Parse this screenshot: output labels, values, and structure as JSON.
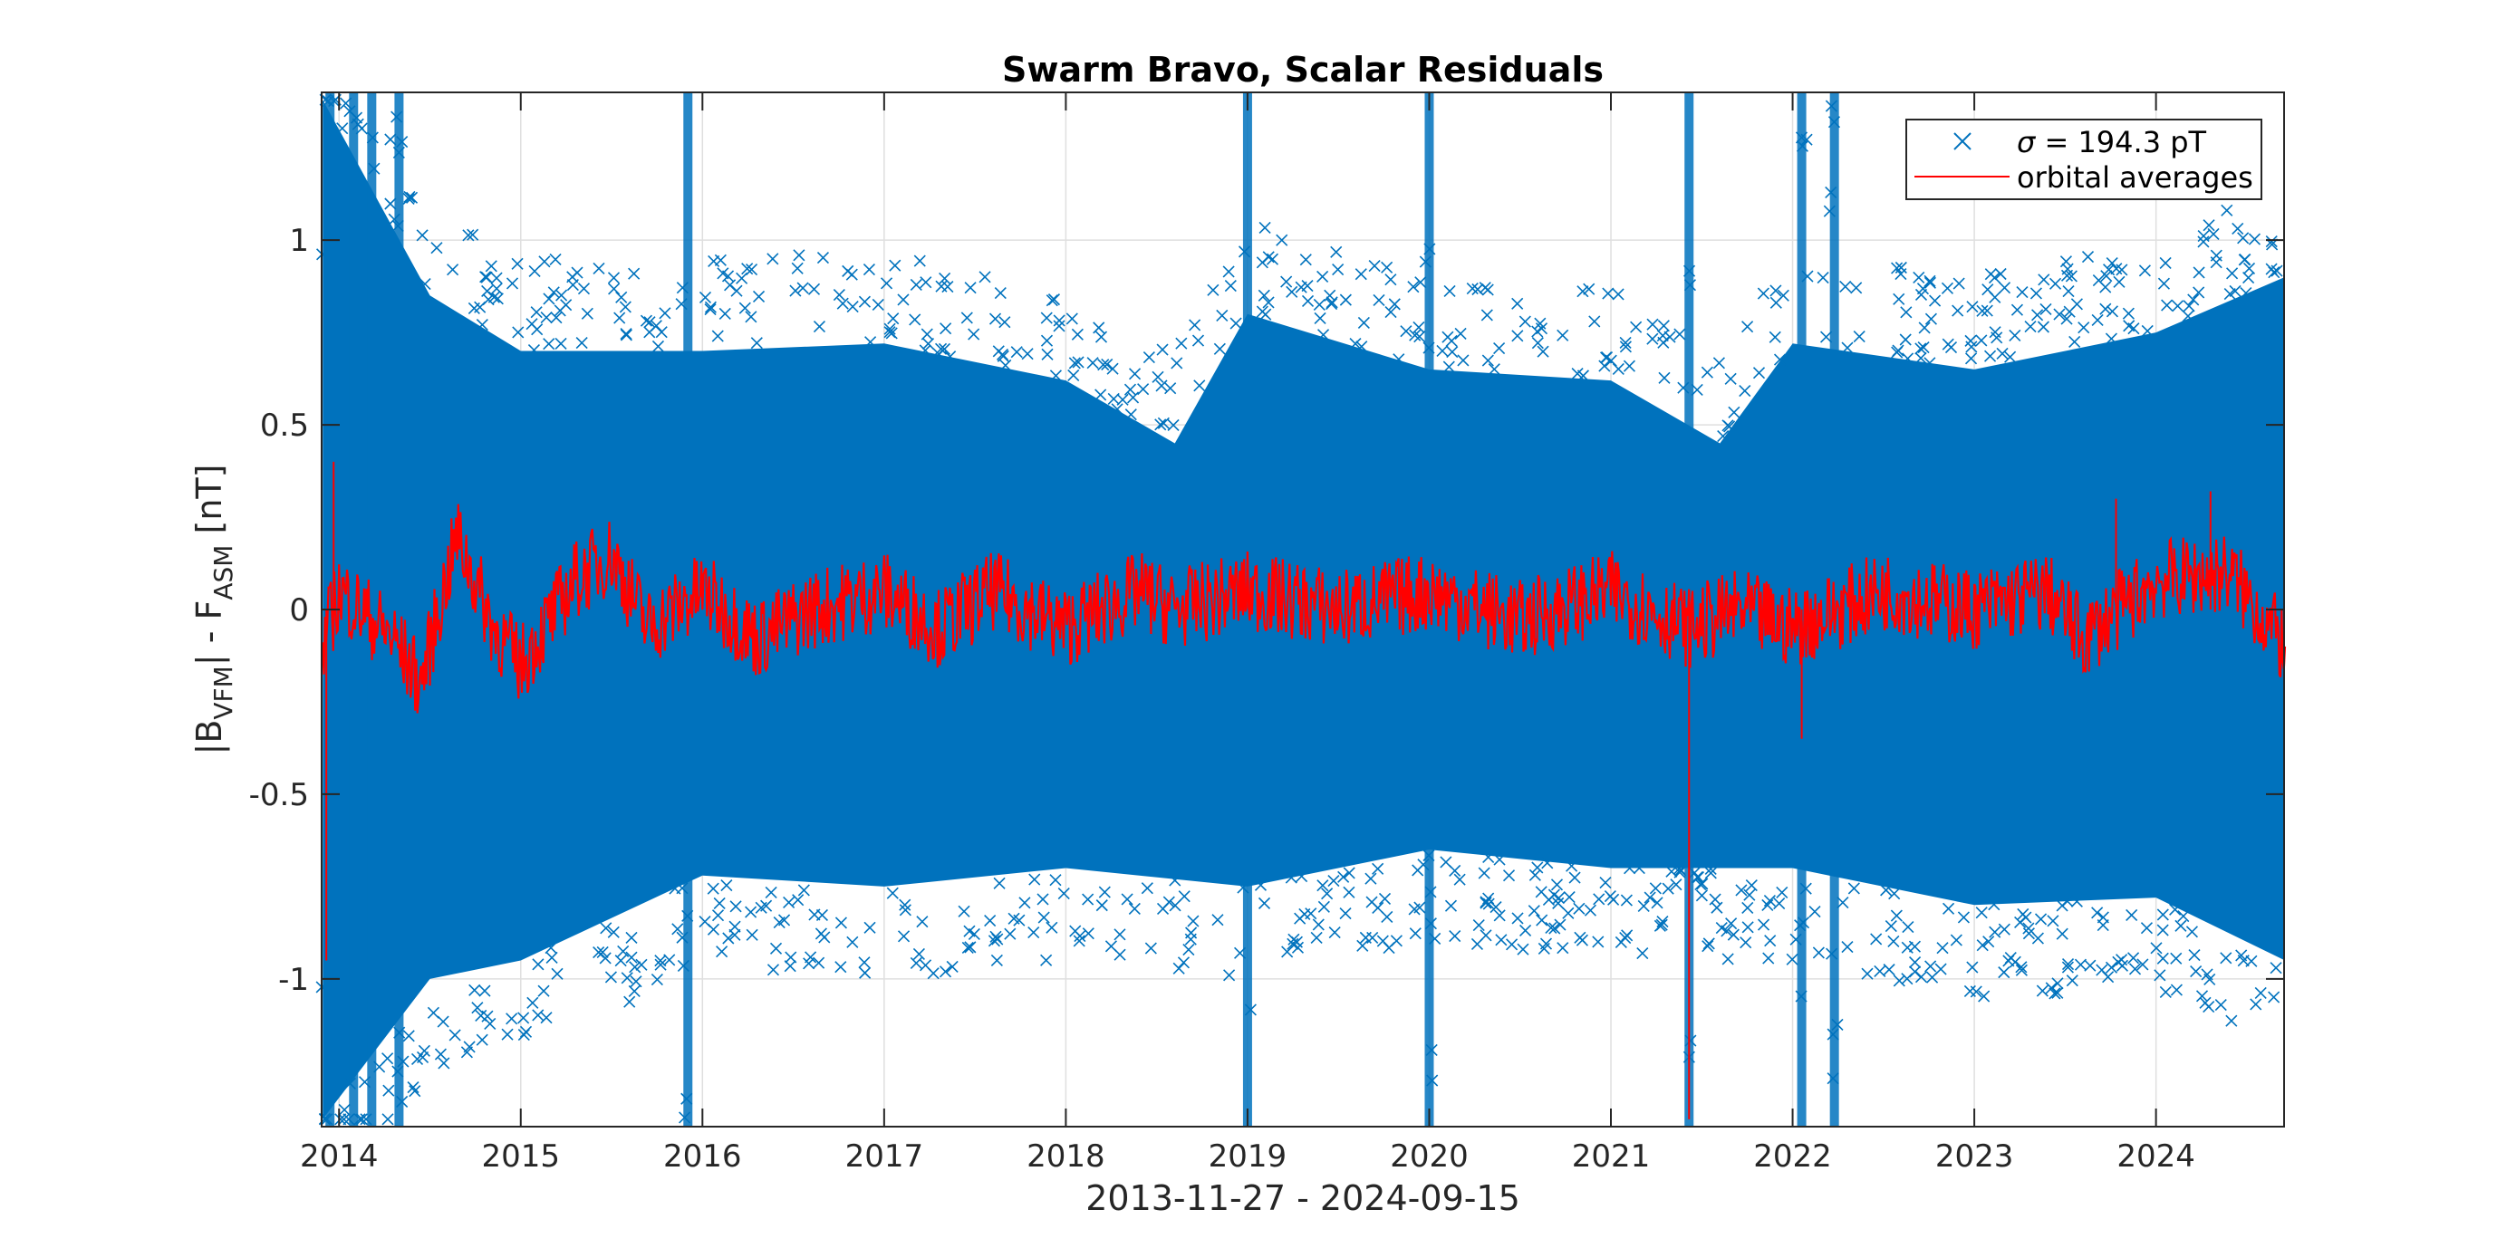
{
  "chart_data": {
    "type": "scatter",
    "title": "Swarm Bravo, Scalar Residuals",
    "xlabel": "2013-11-27 - 2024-09-15",
    "ylabel": "|B_VFM| - F_ASM [nT]",
    "ylabel_parts": {
      "part1": "|B",
      "sub1": "VFM",
      "part2": "| - F",
      "sub2": "ASM",
      "part3": " [nT]"
    },
    "xlim": [
      "2013-11-27",
      "2024-09-15"
    ],
    "ylim": [
      -1.4,
      1.4
    ],
    "x_ticks": [
      "2014",
      "2015",
      "2016",
      "2017",
      "2018",
      "2019",
      "2020",
      "2021",
      "2022",
      "2023",
      "2024"
    ],
    "y_ticks": [
      -1,
      -0.5,
      0,
      0.5,
      1
    ],
    "y_tick_labels": [
      "-1",
      "-0.5",
      "0",
      "0.5",
      "1"
    ],
    "grid": true,
    "legend_position": "top-right",
    "legend_sigma_symbol": "σ",
    "series": [
      {
        "name": " = 194.3 pT",
        "marker": "x",
        "color": "#0072BD",
        "band_upper_envelope": [
          [
            2013.91,
            1.38
          ],
          [
            2014.5,
            0.85
          ],
          [
            2015.0,
            0.7
          ],
          [
            2016.0,
            0.7
          ],
          [
            2017.0,
            0.72
          ],
          [
            2018.0,
            0.62
          ],
          [
            2018.6,
            0.45
          ],
          [
            2019.0,
            0.8
          ],
          [
            2020.0,
            0.65
          ],
          [
            2021.0,
            0.62
          ],
          [
            2021.6,
            0.45
          ],
          [
            2022.0,
            0.72
          ],
          [
            2023.0,
            0.65
          ],
          [
            2024.0,
            0.75
          ],
          [
            2024.71,
            0.9
          ]
        ],
        "band_lower_envelope": [
          [
            2013.91,
            -1.38
          ],
          [
            2014.5,
            -1.0
          ],
          [
            2015.0,
            -0.95
          ],
          [
            2016.0,
            -0.72
          ],
          [
            2017.0,
            -0.75
          ],
          [
            2018.0,
            -0.7
          ],
          [
            2019.0,
            -0.75
          ],
          [
            2020.0,
            -0.65
          ],
          [
            2021.0,
            -0.7
          ],
          [
            2022.0,
            -0.7
          ],
          [
            2023.0,
            -0.8
          ],
          [
            2024.0,
            -0.78
          ],
          [
            2024.71,
            -0.95
          ]
        ],
        "spike_years": [
          2013.95,
          2014.08,
          2014.18,
          2014.33,
          2015.92,
          2019.0,
          2020.0,
          2021.43,
          2022.05,
          2022.23
        ]
      },
      {
        "name": "orbital averages",
        "color": "#FF0000",
        "points": [
          [
            2013.91,
            -0.1
          ],
          [
            2014.0,
            0.05
          ],
          [
            2014.3,
            -0.08
          ],
          [
            2014.45,
            -0.2
          ],
          [
            2014.65,
            0.2
          ],
          [
            2014.85,
            -0.05
          ],
          [
            2015.0,
            -0.15
          ],
          [
            2015.3,
            0.08
          ],
          [
            2015.5,
            0.15
          ],
          [
            2015.7,
            -0.05
          ],
          [
            2016.0,
            0.05
          ],
          [
            2016.3,
            -0.08
          ],
          [
            2016.6,
            0.0
          ],
          [
            2017.0,
            0.05
          ],
          [
            2017.3,
            -0.05
          ],
          [
            2017.6,
            0.05
          ],
          [
            2018.0,
            -0.05
          ],
          [
            2018.4,
            0.05
          ],
          [
            2018.6,
            0.0
          ],
          [
            2019.0,
            0.05
          ],
          [
            2019.5,
            0.0
          ],
          [
            2020.0,
            0.05
          ],
          [
            2020.5,
            -0.03
          ],
          [
            2021.0,
            0.05
          ],
          [
            2021.43,
            -0.05
          ],
          [
            2021.7,
            0.0
          ],
          [
            2022.0,
            -0.05
          ],
          [
            2022.5,
            0.05
          ],
          [
            2023.0,
            0.0
          ],
          [
            2023.4,
            0.05
          ],
          [
            2023.6,
            -0.08
          ],
          [
            2024.0,
            0.08
          ],
          [
            2024.4,
            0.1
          ],
          [
            2024.71,
            -0.1
          ]
        ],
        "spikes": [
          [
            2013.93,
            -0.95
          ],
          [
            2013.97,
            0.4
          ],
          [
            2021.43,
            -1.38
          ],
          [
            2022.05,
            -0.35
          ],
          [
            2023.78,
            0.3
          ],
          [
            2024.3,
            0.32
          ]
        ]
      }
    ]
  }
}
